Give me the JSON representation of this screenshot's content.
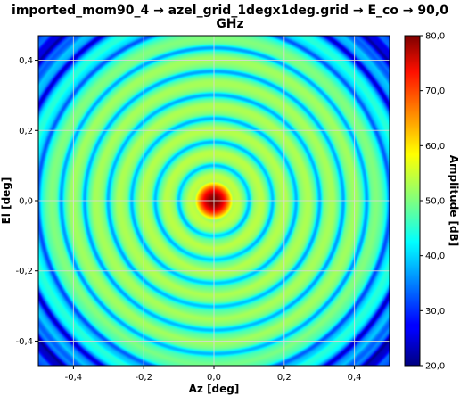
{
  "chart_data": {
    "type": "heatmap",
    "title_line1": "imported_mom90_4 → azel_grid_1degx1deg.grid → E_co → 90,0",
    "title_line2": "GHz",
    "xlabel": "Az [deg]",
    "ylabel": "El [deg]",
    "colorbar_label": "Amplitude [dB]",
    "xlim": [
      -0.5,
      0.5
    ],
    "ylim": [
      -0.47,
      0.47
    ],
    "clim": [
      20,
      80
    ],
    "x_ticks": [
      {
        "value": -0.4,
        "label": "-0,4"
      },
      {
        "value": -0.2,
        "label": "-0,2"
      },
      {
        "value": 0.0,
        "label": "0,0"
      },
      {
        "value": 0.2,
        "label": "0,2"
      },
      {
        "value": 0.4,
        "label": "0,4"
      }
    ],
    "y_ticks": [
      {
        "value": 0.4,
        "label": "0,4"
      },
      {
        "value": 0.2,
        "label": "0,2"
      },
      {
        "value": 0.0,
        "label": "0,0"
      },
      {
        "value": -0.2,
        "label": "-0,2"
      },
      {
        "value": -0.4,
        "label": "-0,4"
      }
    ],
    "colorbar_ticks": [
      {
        "value": 80,
        "label": "80,0"
      },
      {
        "value": 70,
        "label": "70,0"
      },
      {
        "value": 60,
        "label": "60,0"
      },
      {
        "value": 50,
        "label": "50,0"
      },
      {
        "value": 40,
        "label": "40,0"
      },
      {
        "value": 30,
        "label": "30,0"
      },
      {
        "value": 20,
        "label": "20,0"
      }
    ],
    "grid": true,
    "colormap": "jet",
    "peak": {
      "az": 0.0,
      "el": 0.0,
      "value_db": 80
    }
  }
}
